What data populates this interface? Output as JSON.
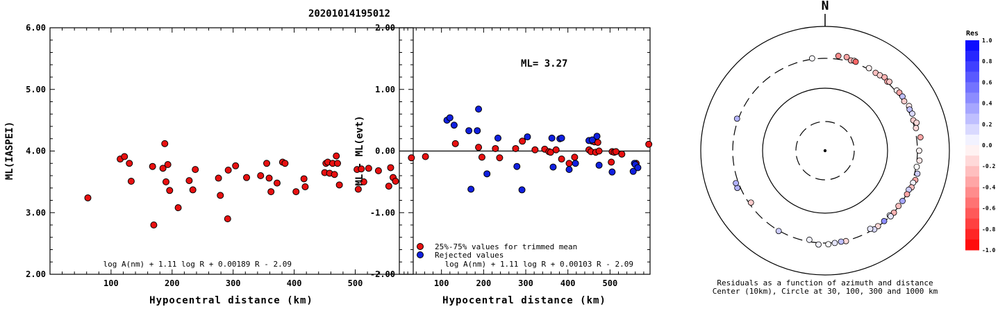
{
  "page_title": "20201014195012",
  "chart_data": [
    {
      "type": "scatter",
      "ylabel": "ML(IASPEI)",
      "xlabel": "Hypocentral distance (km)",
      "xlim": [
        0,
        595
      ],
      "ylim": [
        2.0,
        6.0
      ],
      "x_ticks": [
        "100",
        "200",
        "300",
        "400",
        "500"
      ],
      "x_tick_values": [
        100,
        200,
        300,
        400,
        500
      ],
      "y_ticks": [
        "2.00",
        "3.00",
        "4.00",
        "5.00",
        "6.00"
      ],
      "y_tick_values": [
        2,
        3,
        4,
        5,
        6
      ],
      "formula": "log A(nm) + 1.11 log R + 0.00189 R - 2.09",
      "marker_color": "#e81010",
      "points": [
        [
          62,
          3.24
        ],
        [
          115,
          3.87
        ],
        [
          122,
          3.91
        ],
        [
          130,
          3.8
        ],
        [
          133,
          3.51
        ],
        [
          168,
          3.75
        ],
        [
          170,
          2.8
        ],
        [
          185,
          3.72
        ],
        [
          188,
          4.12
        ],
        [
          190,
          3.5
        ],
        [
          193,
          3.78
        ],
        [
          196,
          3.36
        ],
        [
          210,
          3.08
        ],
        [
          228,
          3.52
        ],
        [
          234,
          3.37
        ],
        [
          238,
          3.7
        ],
        [
          276,
          3.56
        ],
        [
          279,
          3.28
        ],
        [
          291,
          2.9
        ],
        [
          292,
          3.69
        ],
        [
          304,
          3.76
        ],
        [
          322,
          3.57
        ],
        [
          345,
          3.6
        ],
        [
          355,
          3.8
        ],
        [
          359,
          3.56
        ],
        [
          362,
          3.34
        ],
        [
          372,
          3.48
        ],
        [
          381,
          3.82
        ],
        [
          385,
          3.8
        ],
        [
          403,
          3.34
        ],
        [
          416,
          3.55
        ],
        [
          418,
          3.42
        ],
        [
          450,
          3.65
        ],
        [
          452,
          3.8
        ],
        [
          455,
          3.82
        ],
        [
          458,
          3.64
        ],
        [
          463,
          3.8
        ],
        [
          466,
          3.62
        ],
        [
          469,
          3.92
        ],
        [
          471,
          3.8
        ],
        [
          474,
          3.45
        ],
        [
          503,
          3.7
        ],
        [
          505,
          3.38
        ],
        [
          510,
          3.71
        ],
        [
          514,
          3.5
        ],
        [
          522,
          3.72
        ],
        [
          538,
          3.68
        ],
        [
          555,
          3.43
        ],
        [
          558,
          3.73
        ],
        [
          562,
          3.57
        ],
        [
          566,
          3.51
        ],
        [
          592,
          3.89
        ]
      ]
    },
    {
      "type": "scatter",
      "ylabel": "ML - ML(evt)",
      "xlabel": "Hypocentral distance (km)",
      "xlim": [
        0,
        595
      ],
      "ylim": [
        -2.0,
        2.0
      ],
      "x_ticks": [
        "100",
        "200",
        "300",
        "400",
        "500"
      ],
      "x_tick_values": [
        100,
        200,
        300,
        400,
        500
      ],
      "y_ticks": [
        "-2.00",
        "-1.00",
        "0.00",
        "1.00",
        "2.00"
      ],
      "y_tick_values": [
        -2,
        -1,
        0,
        1,
        2
      ],
      "annotation": "ML= 3.27",
      "formula": "log A(nm) + 1.11 log R + 0.00103 R - 2.09",
      "legend": [
        {
          "label": "25%-75% values for trimmed mean",
          "color": "#e81010"
        },
        {
          "label": "Rejected values",
          "color": "#1020e0"
        }
      ],
      "series": [
        {
          "name": "25%-75% values for trimmed mean",
          "color": "#e81010",
          "points": [
            [
              62,
              -0.09
            ],
            [
              133,
              0.12
            ],
            [
              188,
              0.06
            ],
            [
              196,
              -0.1
            ],
            [
              228,
              0.04
            ],
            [
              238,
              -0.11
            ],
            [
              276,
              0.04
            ],
            [
              292,
              0.16
            ],
            [
              322,
              0.02
            ],
            [
              345,
              0.03
            ],
            [
              355,
              -0.01
            ],
            [
              359,
              -0.02
            ],
            [
              372,
              0.02
            ],
            [
              385,
              -0.13
            ],
            [
              403,
              -0.2
            ],
            [
              416,
              -0.1
            ],
            [
              450,
              0.02
            ],
            [
              455,
              -0.01
            ],
            [
              458,
              0.16
            ],
            [
              463,
              0.15
            ],
            [
              466,
              -0.02
            ],
            [
              471,
              0.14
            ],
            [
              474,
              0.0
            ],
            [
              503,
              -0.18
            ],
            [
              505,
              -0.01
            ],
            [
              510,
              -0.02
            ],
            [
              514,
              -0.01
            ],
            [
              528,
              -0.05
            ],
            [
              562,
              -0.2
            ],
            [
              592,
              0.11
            ]
          ]
        },
        {
          "name": "Rejected values",
          "color": "#1020e0",
          "points": [
            [
              113,
              0.5
            ],
            [
              120,
              0.54
            ],
            [
              130,
              0.42
            ],
            [
              165,
              0.33
            ],
            [
              170,
              -0.62
            ],
            [
              185,
              0.33
            ],
            [
              188,
              0.68
            ],
            [
              208,
              -0.37
            ],
            [
              234,
              0.21
            ],
            [
              279,
              -0.25
            ],
            [
              291,
              -0.63
            ],
            [
              304,
              0.23
            ],
            [
              362,
              0.21
            ],
            [
              365,
              -0.26
            ],
            [
              381,
              0.2
            ],
            [
              385,
              0.21
            ],
            [
              403,
              -0.3
            ],
            [
              418,
              -0.2
            ],
            [
              450,
              0.17
            ],
            [
              458,
              0.18
            ],
            [
              469,
              0.24
            ],
            [
              474,
              -0.23
            ],
            [
              505,
              -0.34
            ],
            [
              555,
              -0.33
            ],
            [
              558,
              -0.2
            ],
            [
              560,
              -0.22
            ],
            [
              566,
              -0.27
            ]
          ]
        }
      ]
    },
    {
      "type": "polar-scatter",
      "title": "N",
      "caption_line1": "Residuals as a function of azimuth and distance",
      "caption_line2": "Center (10km), Circle at 30, 100, 300 and 1000 km",
      "rings": [
        {
          "km": 30,
          "dashed": true
        },
        {
          "km": 100,
          "dashed": false
        },
        {
          "km": 300,
          "dashed": true
        },
        {
          "km": 1000,
          "dashed": false
        }
      ],
      "colorbar": {
        "label": "Res",
        "ticks": [
          "1.0",
          "0.8",
          "0.6",
          "0.4",
          "0.2",
          "0.0",
          "-0.2",
          "-0.4",
          "-0.6",
          "-0.8",
          "-1.0"
        ],
        "tick_values": [
          1.0,
          0.8,
          0.6,
          0.4,
          0.2,
          0.0,
          -0.2,
          -0.4,
          -0.6,
          -0.8,
          -1.0
        ]
      },
      "stations": [
        [
          -8,
          310,
          0.02
        ],
        [
          8,
          340,
          -0.45
        ],
        [
          13,
          345,
          -0.35
        ],
        [
          16,
          318,
          -0.3
        ],
        [
          18,
          325,
          -0.15
        ],
        [
          19,
          320,
          -0.6
        ],
        [
          28,
          313,
          -0.05
        ],
        [
          33,
          305,
          -0.25
        ],
        [
          36,
          310,
          -0.18
        ],
        [
          39,
          325,
          -0.3
        ],
        [
          42,
          308,
          -0.35
        ],
        [
          43,
          322,
          -0.22
        ],
        [
          50,
          315,
          -0.05
        ],
        [
          52,
          323,
          -0.35
        ],
        [
          55,
          325,
          0.25
        ],
        [
          58,
          311,
          -0.2
        ],
        [
          62,
          333,
          -0.1
        ],
        [
          64,
          320,
          0.25
        ],
        [
          67,
          328,
          0.15
        ],
        [
          71,
          311,
          -0.2
        ],
        [
          73,
          340,
          -0.15
        ],
        [
          76,
          315,
          -0.15
        ],
        [
          82,
          348,
          -0.35
        ],
        [
          90,
          320,
          -0.05
        ],
        [
          96,
          330,
          -0.1
        ],
        [
          100,
          308,
          0.0
        ],
        [
          104,
          333,
          0.2
        ],
        [
          108,
          330,
          -0.35
        ],
        [
          110,
          315,
          0.05
        ],
        [
          113,
          318,
          -0.25
        ],
        [
          115,
          300,
          0.2
        ],
        [
          118,
          305,
          -0.35
        ],
        [
          123,
          300,
          0.35
        ],
        [
          127,
          295,
          -0.25
        ],
        [
          132,
          303,
          -0.3
        ],
        [
          135,
          290,
          0.05
        ],
        [
          135,
          305,
          0.1
        ],
        [
          140,
          295,
          0.45
        ],
        [
          145,
          298,
          -0.15
        ],
        [
          148,
          305,
          0.15
        ],
        [
          150,
          278,
          0.1
        ],
        [
          167,
          305,
          -0.15
        ],
        [
          170,
          300,
          0.25
        ],
        [
          174,
          305,
          0.1
        ],
        [
          178,
          315,
          0.0
        ],
        [
          184,
          320,
          0.05
        ],
        [
          190,
          280,
          0.05
        ],
        [
          210,
          305,
          0.2
        ],
        [
          235,
          280,
          -0.2
        ],
        [
          247,
          335,
          0.3
        ],
        [
          250,
          330,
          0.3
        ],
        [
          290,
          315,
          0.3
        ]
      ]
    }
  ]
}
